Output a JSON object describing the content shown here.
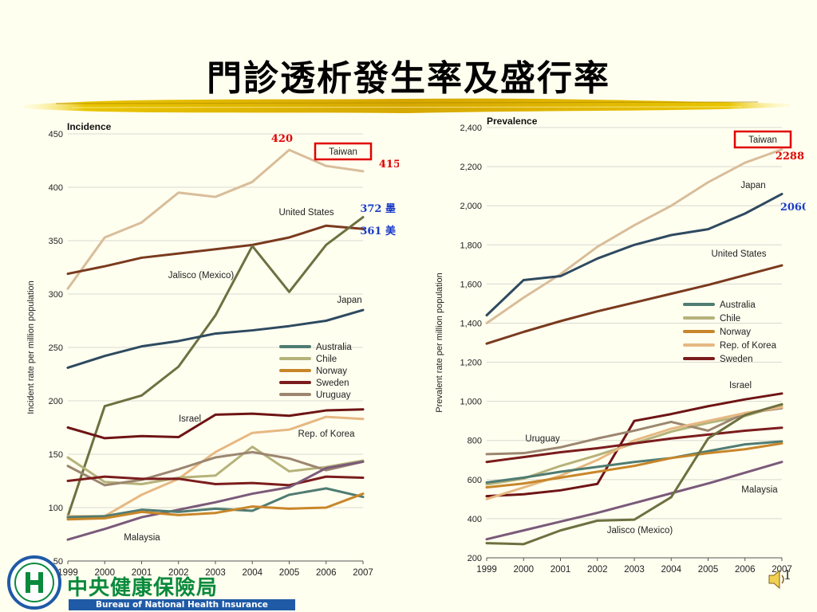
{
  "slide": {
    "title": "門診透析發生率及盛行率",
    "page_number": "1"
  },
  "org": {
    "name_cn": "中央健康保險局",
    "name_en": "Bureau of National Health Insurance",
    "logo_colors": {
      "blue": "#1f5aa6",
      "green": "#0a8a3c"
    }
  },
  "chart_data": [
    {
      "id": "incidence",
      "type": "line",
      "title": "Incidence",
      "xlabel": "",
      "ylabel": "Incident rate per million population",
      "x": [
        1999,
        2000,
        2001,
        2002,
        2003,
        2004,
        2005,
        2006,
        2007
      ],
      "xlim": [
        1999,
        2007
      ],
      "ylim": [
        50,
        450
      ],
      "yticks": [
        50,
        100,
        150,
        200,
        250,
        300,
        350,
        400,
        450
      ],
      "yticklabels": [
        "50",
        "100",
        "150",
        "200",
        "250",
        "300",
        "350",
        "400",
        "450"
      ],
      "grid": true,
      "legend": [
        {
          "label": "Australia",
          "color": "#4f7c72"
        },
        {
          "label": "Chile",
          "color": "#b5b27a"
        },
        {
          "label": "Norway",
          "color": "#c8862a"
        },
        {
          "label": "Sweden",
          "color": "#7b1c1c"
        },
        {
          "label": "Uruguay",
          "color": "#9c8670"
        }
      ],
      "series": [
        {
          "name": "Taiwan",
          "color": "#d9bd9a",
          "values": [
            305,
            353,
            367,
            395,
            391,
            405,
            435,
            420,
            415
          ]
        },
        {
          "name": "United States",
          "color": "#7a3a1e",
          "values": [
            319,
            326,
            334,
            338,
            342,
            346,
            353,
            364,
            361
          ]
        },
        {
          "name": "Jalisco (Mexico)",
          "color": "#6e7040",
          "values": [
            92,
            195,
            205,
            232,
            280,
            345,
            302,
            346,
            372
          ]
        },
        {
          "name": "Japan",
          "color": "#2e4a60",
          "values": [
            231,
            242,
            251,
            256,
            263,
            266,
            270,
            275,
            285
          ]
        },
        {
          "name": "Israel",
          "color": "#6e1414",
          "values": [
            175,
            165,
            167,
            166,
            187,
            188,
            186,
            191,
            192
          ]
        },
        {
          "name": "Rep. of Korea",
          "color": "#e6b882",
          "values": [
            92,
            92,
            112,
            127,
            152,
            170,
            173,
            185,
            183
          ]
        },
        {
          "name": "Chile",
          "color": "#b5b27a",
          "values": [
            147,
            124,
            122,
            128,
            130,
            157,
            134,
            138,
            144
          ]
        },
        {
          "name": "Uruguay",
          "color": "#9c8670",
          "values": [
            139,
            121,
            126,
            136,
            147,
            152,
            146,
            135,
            143
          ]
        },
        {
          "name": "Sweden",
          "color": "#7b1c1c",
          "values": [
            125,
            129,
            127,
            127,
            122,
            123,
            121,
            129,
            128
          ]
        },
        {
          "name": "Malaysia",
          "color": "#7a5a7a",
          "values": [
            70,
            80,
            91,
            98,
            105,
            113,
            119,
            137,
            143
          ]
        },
        {
          "name": "Australia",
          "color": "#4f7c72",
          "values": [
            91,
            92,
            98,
            96,
            99,
            97,
            112,
            118,
            110
          ]
        },
        {
          "name": "Norway",
          "color": "#c8862a",
          "values": [
            89,
            90,
            96,
            93,
            95,
            101,
            99,
            100,
            113
          ]
        }
      ],
      "line_labels": [
        {
          "text": "Taiwan",
          "series": "Taiwan",
          "boxed": true
        },
        {
          "text": "United States",
          "series": "United States"
        },
        {
          "text": "Jalisco (Mexico)",
          "series": "Jalisco (Mexico)"
        },
        {
          "text": "Japan",
          "series": "Japan"
        },
        {
          "text": "Israel",
          "series": "Israel"
        },
        {
          "text": "Rep. of Korea",
          "series": "Rep. of Korea"
        },
        {
          "text": "Malaysia",
          "series": "Malaysia"
        }
      ],
      "annotations": [
        {
          "text": "420",
          "color": "#e00000"
        },
        {
          "text": "415",
          "color": "#e00000"
        },
        {
          "text": "372 墨",
          "color": "#1a3cc8"
        },
        {
          "text": "361 美",
          "color": "#1a3cc8"
        }
      ]
    },
    {
      "id": "prevalence",
      "type": "line",
      "title": "Prevalence",
      "xlabel": "",
      "ylabel": "Prevalent rate per million population",
      "x": [
        1999,
        2000,
        2001,
        2002,
        2003,
        2004,
        2005,
        2006,
        2007
      ],
      "xlim": [
        1999,
        2007
      ],
      "ylim": [
        200,
        2400
      ],
      "yticks": [
        200,
        400,
        600,
        800,
        1000,
        1200,
        1400,
        1600,
        1800,
        2000,
        2200,
        2400
      ],
      "yticklabels": [
        "200",
        "400",
        "600",
        "800",
        "1,000",
        "1,200",
        "1,400",
        "1,600",
        "1,800",
        "2,000",
        "2,200",
        "2,400"
      ],
      "grid": true,
      "legend": [
        {
          "label": "Australia",
          "color": "#4f7c72"
        },
        {
          "label": "Chile",
          "color": "#b5b27a"
        },
        {
          "label": "Norway",
          "color": "#c8862a"
        },
        {
          "label": "Rep. of Korea",
          "color": "#e6b882"
        },
        {
          "label": "Sweden",
          "color": "#7b1c1c"
        }
      ],
      "series": [
        {
          "name": "Taiwan",
          "color": "#d9bd9a",
          "values": [
            1400,
            1530,
            1650,
            1790,
            1900,
            2000,
            2120,
            2220,
            2288
          ]
        },
        {
          "name": "Japan",
          "color": "#2e4a60",
          "values": [
            1440,
            1620,
            1640,
            1730,
            1800,
            1850,
            1880,
            1960,
            2060
          ]
        },
        {
          "name": "United States",
          "color": "#7a3a1e",
          "values": [
            1295,
            1355,
            1410,
            1460,
            1505,
            1550,
            1595,
            1645,
            1695
          ]
        },
        {
          "name": "Israel",
          "color": "#6e1414",
          "values": [
            515,
            525,
            545,
            578,
            900,
            935,
            975,
            1010,
            1040
          ]
        },
        {
          "name": "Chile",
          "color": "#b5b27a",
          "values": [
            575,
            605,
            670,
            725,
            785,
            845,
            890,
            925,
            980
          ]
        },
        {
          "name": "Uruguay",
          "color": "#9c8670",
          "values": [
            730,
            735,
            765,
            810,
            850,
            895,
            850,
            940,
            965
          ]
        },
        {
          "name": "Rep. of Korea",
          "color": "#e6b882",
          "values": [
            500,
            560,
            620,
            700,
            800,
            860,
            900,
            940,
            970
          ]
        },
        {
          "name": "Sweden",
          "color": "#7b1c1c",
          "values": [
            690,
            715,
            740,
            760,
            785,
            810,
            830,
            850,
            865
          ]
        },
        {
          "name": "Australia",
          "color": "#4f7c72",
          "values": [
            585,
            610,
            640,
            665,
            690,
            710,
            745,
            780,
            795
          ]
        },
        {
          "name": "Norway",
          "color": "#c8862a",
          "values": [
            560,
            580,
            610,
            640,
            670,
            710,
            735,
            755,
            785
          ]
        },
        {
          "name": "Malaysia",
          "color": "#7a5a7a",
          "values": [
            295,
            340,
            385,
            430,
            480,
            530,
            580,
            635,
            690
          ]
        },
        {
          "name": "Jalisco (Mexico)",
          "color": "#6e7040",
          "values": [
            275,
            270,
            340,
            390,
            395,
            510,
            810,
            930,
            985
          ]
        }
      ],
      "line_labels": [
        {
          "text": "Taiwan",
          "series": "Taiwan",
          "boxed": true
        },
        {
          "text": "Japan",
          "series": "Japan"
        },
        {
          "text": "United States",
          "series": "United States"
        },
        {
          "text": "Israel",
          "series": "Israel"
        },
        {
          "text": "Uruguay",
          "series": "Uruguay"
        },
        {
          "text": "Malaysia",
          "series": "Malaysia"
        },
        {
          "text": "Jalisco (Mexico)",
          "series": "Jalisco (Mexico)"
        }
      ],
      "annotations": [
        {
          "text": "2288",
          "color": "#e00000"
        },
        {
          "text": "2060",
          "color": "#1a3cc8"
        }
      ]
    }
  ]
}
